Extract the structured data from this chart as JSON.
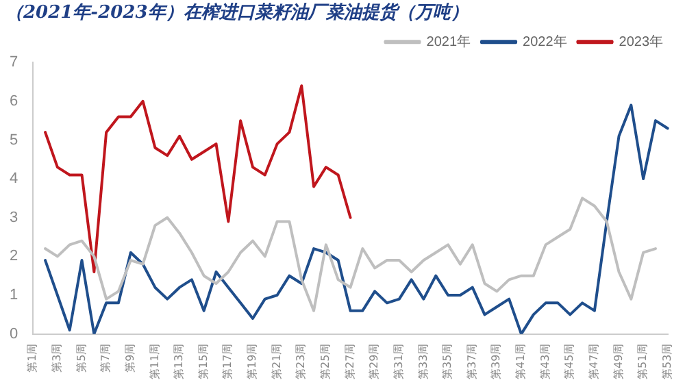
{
  "chart_data": {
    "type": "line",
    "title": "（2021年-2023年）在榨进口菜籽油厂菜油提货（万吨）",
    "categories": [
      "第1周",
      null,
      "第3周",
      null,
      "第5周",
      null,
      "第7周",
      null,
      "第9周",
      null,
      "第11周",
      null,
      "第13周",
      null,
      "第15周",
      null,
      "第17周",
      null,
      "第19周",
      null,
      "第21周",
      null,
      "第23周",
      null,
      "第25周",
      null,
      "第27周",
      null,
      "第29周",
      null,
      "第31周",
      null,
      "第33周",
      null,
      "第35周",
      null,
      "第37周",
      null,
      "第39周",
      null,
      "第41周",
      null,
      "第43周",
      null,
      "第45周",
      null,
      "第47周",
      null,
      "第49周",
      null,
      "第51周",
      null,
      "第53周"
    ],
    "series": [
      {
        "name": "2021年",
        "color": "#bfbfbf",
        "values": [
          null,
          2.2,
          2.0,
          2.3,
          2.4,
          2.0,
          0.9,
          1.1,
          1.9,
          1.8,
          2.8,
          3.0,
          2.6,
          2.1,
          1.5,
          1.3,
          1.6,
          2.1,
          2.4,
          2.0,
          2.9,
          2.9,
          1.4,
          0.6,
          2.3,
          1.4,
          1.2,
          2.2,
          1.7,
          1.9,
          1.9,
          1.6,
          1.9,
          2.1,
          2.3,
          1.8,
          2.3,
          1.3,
          1.1,
          1.4,
          1.5,
          1.5,
          2.3,
          2.5,
          2.7,
          3.5,
          3.3,
          2.9,
          1.6,
          0.9,
          2.1,
          2.2,
          null
        ]
      },
      {
        "name": "2022年",
        "color": "#1f4e8c",
        "values": [
          null,
          1.9,
          1.0,
          0.1,
          1.9,
          0.0,
          0.8,
          0.8,
          2.1,
          1.8,
          1.2,
          0.9,
          1.2,
          1.4,
          0.6,
          1.6,
          1.2,
          0.8,
          0.4,
          0.9,
          1.0,
          1.5,
          1.3,
          2.2,
          2.1,
          1.9,
          0.6,
          0.6,
          1.1,
          0.8,
          0.9,
          1.4,
          0.9,
          1.5,
          1.0,
          1.0,
          1.2,
          0.5,
          0.7,
          0.9,
          0.0,
          0.5,
          0.8,
          0.8,
          0.5,
          0.8,
          0.6,
          2.9,
          5.1,
          5.9,
          4.0,
          5.5,
          5.3
        ]
      },
      {
        "name": "2023年",
        "color": "#c0161d",
        "values": [
          null,
          5.2,
          4.3,
          4.1,
          4.1,
          1.6,
          5.2,
          5.6,
          5.6,
          6.0,
          4.8,
          4.6,
          5.1,
          4.5,
          4.7,
          4.9,
          2.9,
          5.5,
          4.3,
          4.1,
          4.9,
          5.2,
          6.4,
          3.8,
          4.3,
          4.1,
          3.0,
          null,
          null,
          null,
          null,
          null,
          null,
          null,
          null,
          null,
          null,
          null,
          null,
          null,
          null,
          null,
          null,
          null,
          null,
          null,
          null,
          null,
          null,
          null,
          null,
          null,
          null
        ]
      }
    ],
    "ylim": [
      0,
      7
    ],
    "yticks": [
      0,
      1,
      2,
      3,
      4,
      5,
      6,
      7
    ],
    "grid": false,
    "legend": "top right",
    "marker": "none",
    "line_style": "solid"
  }
}
